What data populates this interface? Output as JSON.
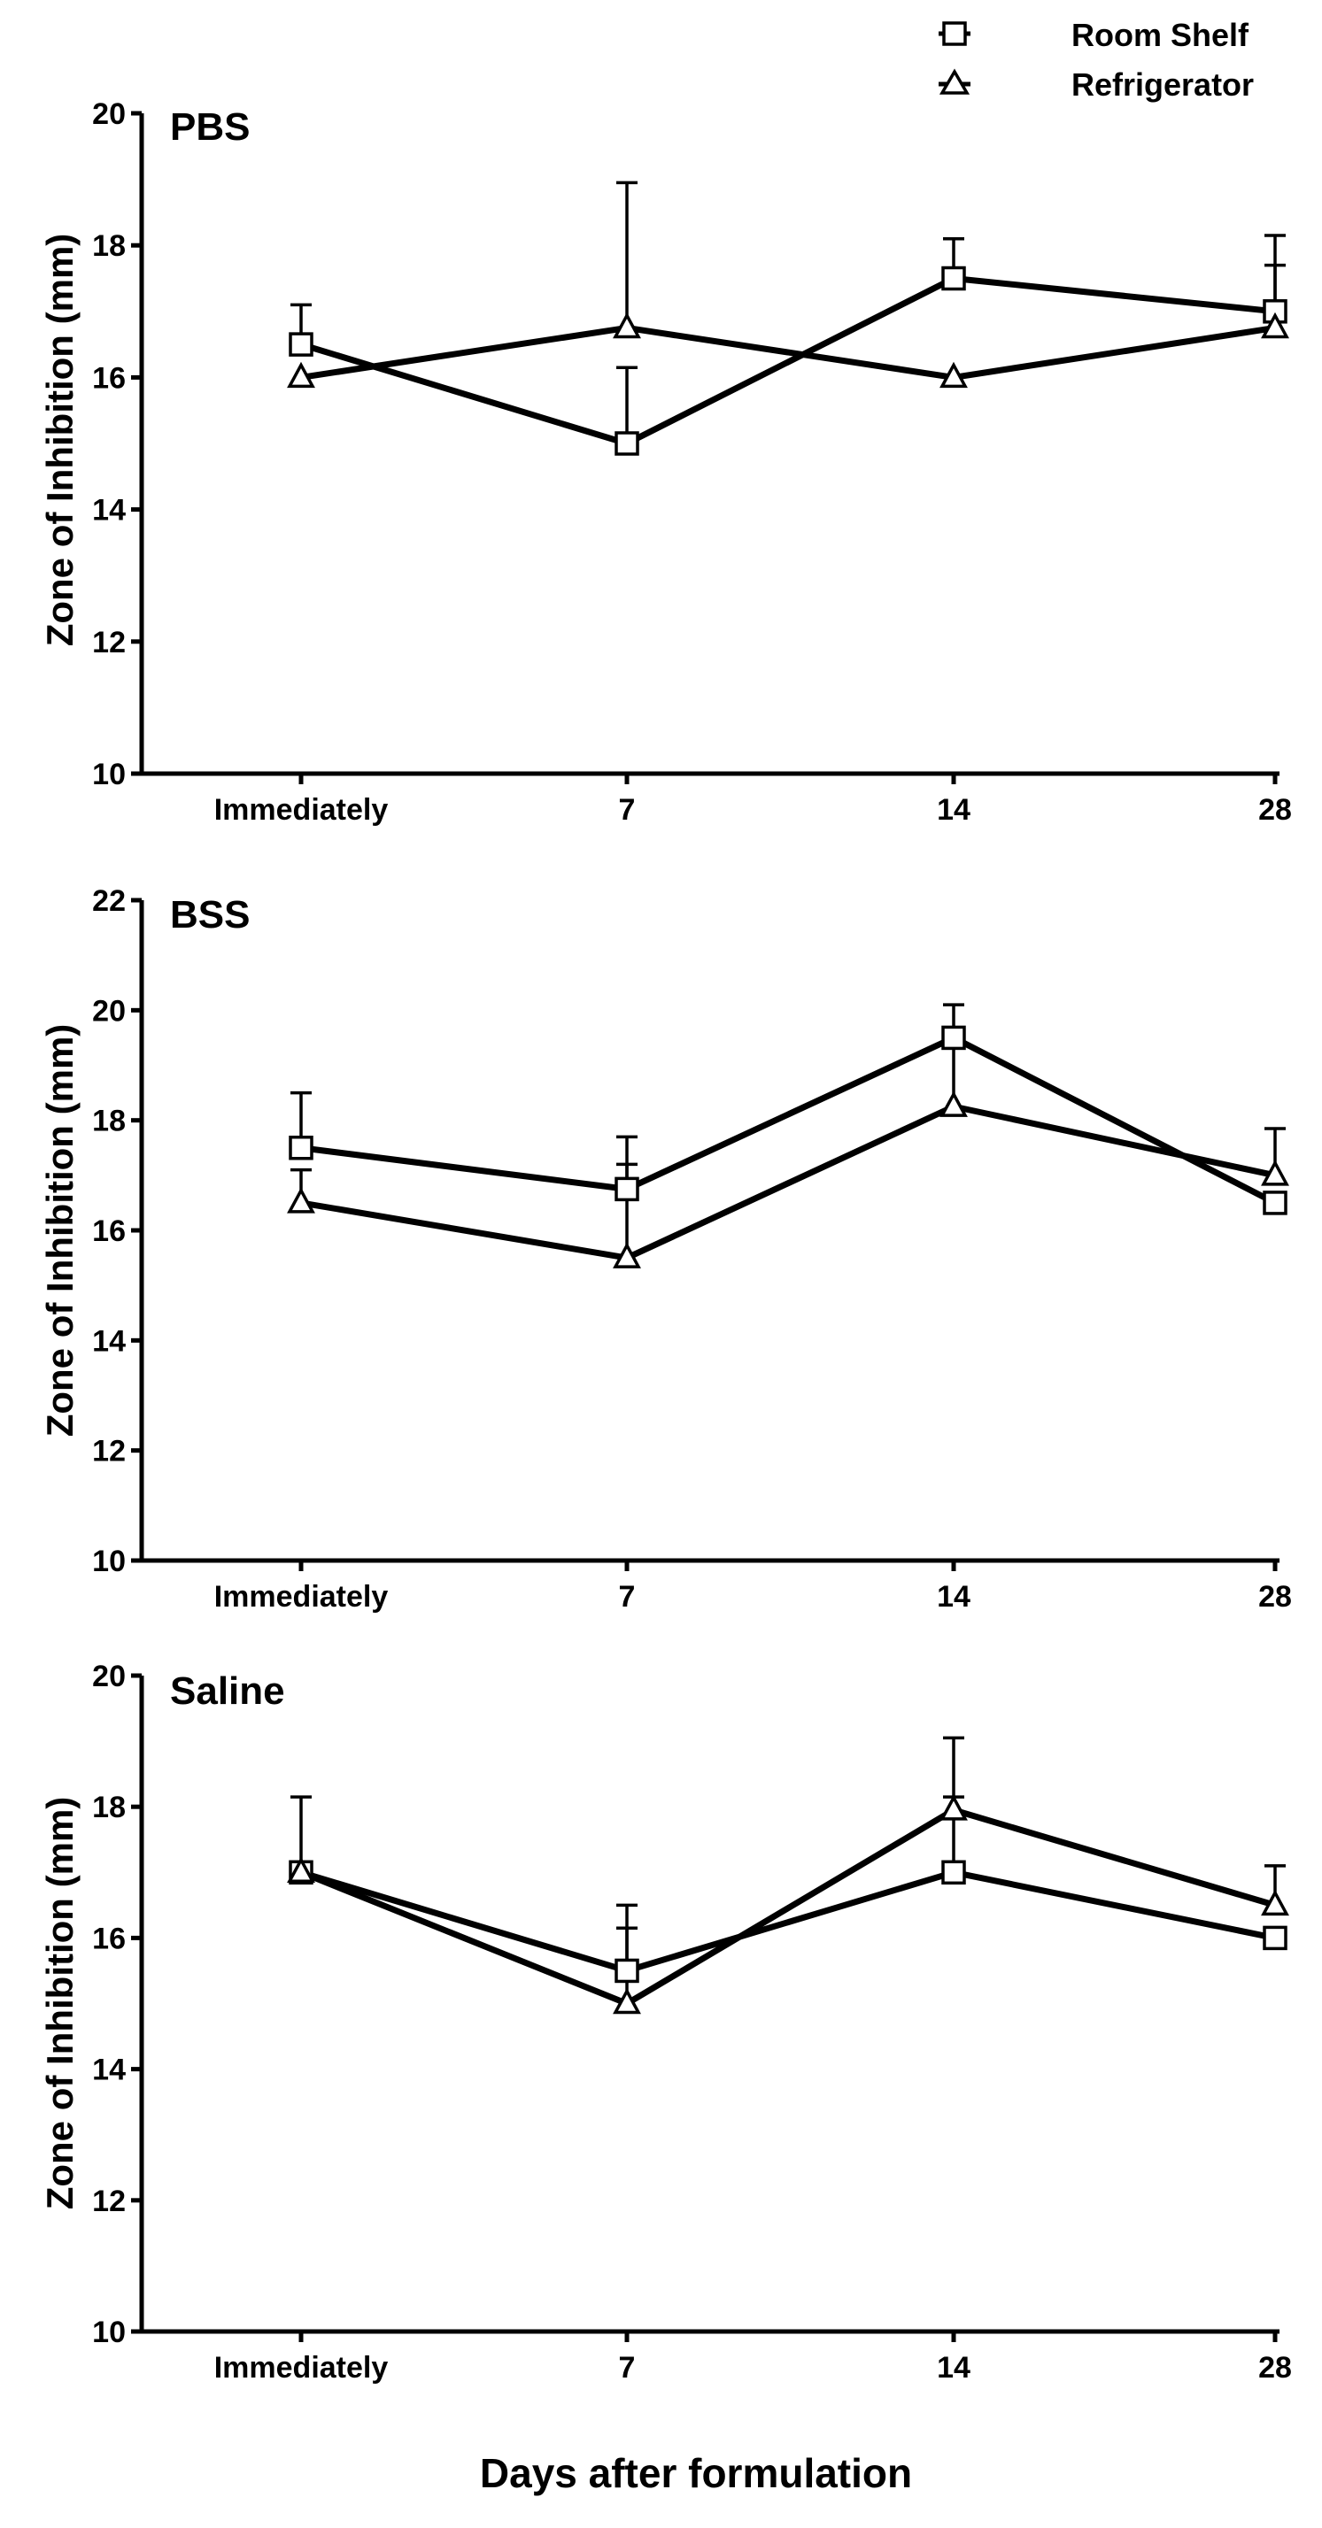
{
  "figure": {
    "xlabel": "Days after formulation",
    "legend": [
      {
        "name": "Room Shelf",
        "marker": "square"
      },
      {
        "name": "Refrigerator",
        "marker": "triangle"
      }
    ],
    "colors": {
      "line": "#000000",
      "marker_fill": "#ffffff",
      "background": "#ffffff"
    }
  },
  "chart_data": [
    {
      "type": "line",
      "title": "PBS",
      "xlabel": "",
      "ylabel": "Zone of Inhibition (mm)",
      "categories": [
        "Immediately",
        "7",
        "14",
        "28"
      ],
      "ylim": [
        10,
        20
      ],
      "yticks": [
        "10",
        "12",
        "14",
        "16",
        "18",
        "20"
      ],
      "series": [
        {
          "name": "Room Shelf",
          "marker": "square",
          "values": [
            16.5,
            15.0,
            17.5,
            17.0
          ],
          "errors": [
            0.6,
            1.15,
            0.6,
            1.15
          ]
        },
        {
          "name": "Refrigerator",
          "marker": "triangle",
          "values": [
            16.0,
            16.75,
            16.0,
            16.75
          ],
          "errors": [
            0,
            2.2,
            0,
            0.95
          ]
        }
      ]
    },
    {
      "type": "line",
      "title": "BSS",
      "xlabel": "",
      "ylabel": "Zone of Inhibition (mm)",
      "categories": [
        "Immediately",
        "7",
        "14",
        "28"
      ],
      "ylim": [
        10,
        22
      ],
      "yticks": [
        "10",
        "12",
        "14",
        "16",
        "18",
        "20",
        "22"
      ],
      "series": [
        {
          "name": "Room Shelf",
          "marker": "square",
          "values": [
            17.5,
            16.75,
            19.5,
            16.5
          ],
          "errors": [
            1.0,
            0.95,
            0.6,
            0
          ]
        },
        {
          "name": "Refrigerator",
          "marker": "triangle",
          "values": [
            16.5,
            15.5,
            18.25,
            17.0
          ],
          "errors": [
            0.6,
            1.7,
            1.25,
            0.85
          ]
        }
      ]
    },
    {
      "type": "line",
      "title": "Saline",
      "xlabel": "",
      "ylabel": "Zone of Inhibition (mm)",
      "categories": [
        "Immediately",
        "7",
        "14",
        "28"
      ],
      "ylim": [
        10,
        20
      ],
      "yticks": [
        "10",
        "12",
        "14",
        "16",
        "18",
        "20"
      ],
      "series": [
        {
          "name": "Room Shelf",
          "marker": "square",
          "values": [
            17.0,
            15.5,
            17.0,
            16.0
          ],
          "errors": [
            1.15,
            1.0,
            1.15,
            0
          ]
        },
        {
          "name": "Refrigerator",
          "marker": "triangle",
          "values": [
            17.0,
            15.0,
            17.95,
            16.5
          ],
          "errors": [
            0,
            1.15,
            1.1,
            0.6
          ]
        }
      ]
    }
  ]
}
